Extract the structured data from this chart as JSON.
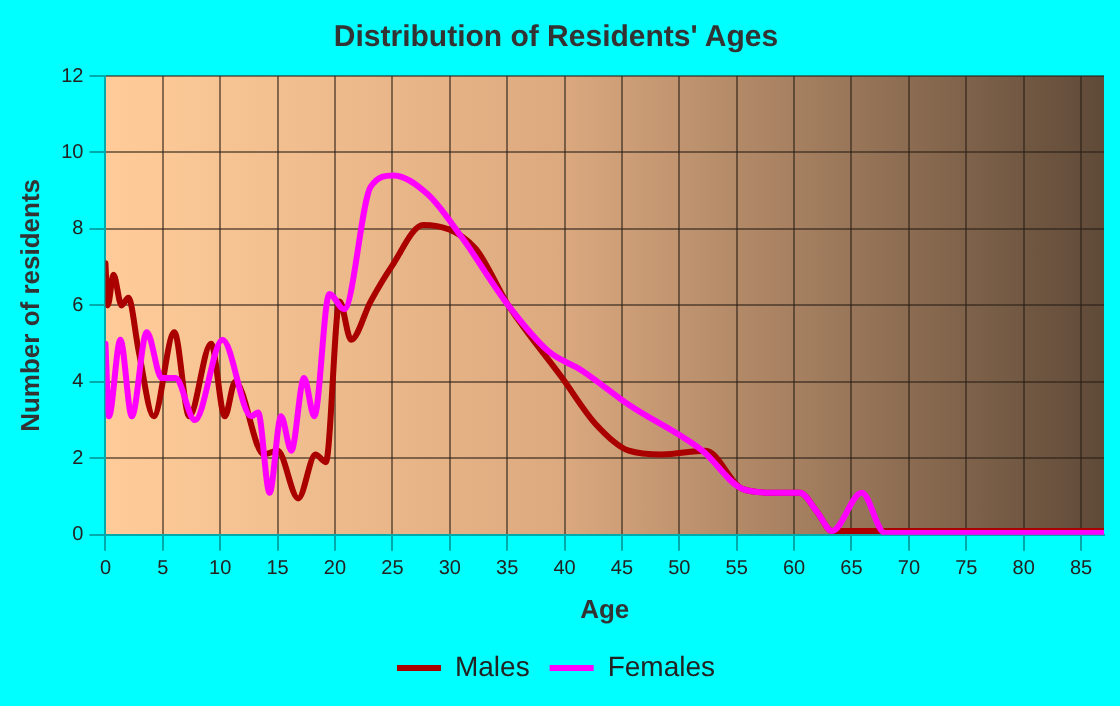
{
  "chart_data": {
    "type": "line",
    "title": "Distribution of Residents' Ages",
    "xlabel": "Age",
    "ylabel": "Number of residents",
    "xlim": [
      0,
      87
    ],
    "xticks": [
      0,
      5,
      10,
      15,
      20,
      25,
      30,
      35,
      40,
      45,
      50,
      55,
      60,
      65,
      70,
      75,
      80,
      85
    ],
    "ylim": [
      0,
      12
    ],
    "yticks": [
      0,
      2,
      4,
      6,
      8,
      10,
      12
    ],
    "grid": true,
    "legend": "bottom",
    "marker": "none",
    "line_style": "solid",
    "series": [
      {
        "name": "Males",
        "color": "#aa0000",
        "x": [
          0,
          0.2,
          0.7,
          1.4,
          2,
          2.9,
          4.2,
          6,
          7.3,
          9.2,
          10.4,
          11.3,
          13.8,
          15,
          16.8,
          18.3,
          19.2,
          20.4,
          21.4,
          23.1,
          24.9,
          27.7,
          32.2,
          35.1,
          39.8,
          42.7,
          45.6,
          48.5,
          52.3,
          55.5,
          58.1,
          60.5,
          62,
          63.3,
          65.3,
          70,
          75,
          80,
          87
        ],
        "values": [
          7.1,
          6.0,
          6.8,
          6.0,
          6.2,
          4.8,
          3.1,
          5.3,
          3.1,
          5.0,
          3.1,
          4.0,
          2.1,
          2.2,
          0.95,
          2.1,
          1.9,
          6.1,
          5.1,
          6.1,
          7.0,
          8.1,
          7.5,
          6.0,
          4.1,
          2.9,
          2.2,
          2.1,
          2.2,
          1.2,
          1.1,
          1.1,
          0.6,
          0.1,
          0.1,
          0.1,
          0.1,
          0.1,
          0.1
        ]
      },
      {
        "name": "Females",
        "color": "#ff00ff",
        "x": [
          0,
          0.3,
          1.3,
          2.3,
          3.6,
          4.9,
          6.1,
          7.8,
          10.2,
          12.7,
          13.3,
          14.3,
          15.3,
          16.2,
          17.3,
          18.2,
          19.5,
          20.8,
          23.1,
          25.1,
          28.1,
          31,
          35.1,
          38.6,
          41.5,
          45.6,
          52,
          55.5,
          58.1,
          60.5,
          62,
          63.3,
          65.9,
          67.9,
          70,
          75,
          80,
          87
        ],
        "values": [
          5.0,
          3.1,
          5.1,
          3.1,
          5.3,
          4.1,
          4.1,
          3.0,
          5.1,
          3.1,
          3.2,
          1.1,
          3.1,
          2.2,
          4.1,
          3.1,
          6.3,
          5.9,
          9.1,
          9.4,
          8.9,
          7.8,
          6.0,
          4.8,
          4.3,
          3.4,
          2.2,
          1.2,
          1.1,
          1.1,
          0.6,
          0.1,
          1.1,
          0.05,
          0.05,
          0.05,
          0.05,
          0.05
        ]
      }
    ]
  }
}
